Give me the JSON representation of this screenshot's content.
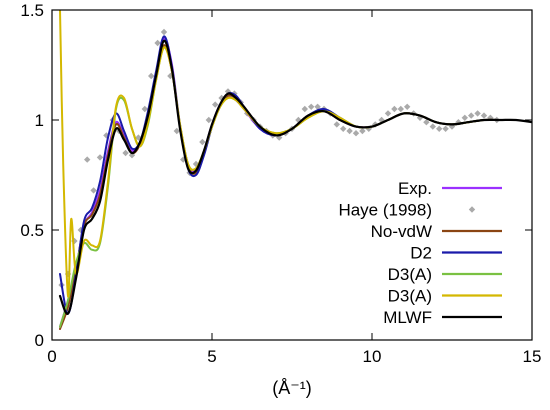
{
  "chart_data": {
    "type": "line",
    "title": "",
    "xlabel": "(Å⁻¹)",
    "ylabel": "",
    "xlim": [
      0,
      15
    ],
    "ylim": [
      0,
      1.5
    ],
    "grid": false,
    "legend_position": "bottom-right",
    "x_ticks": [
      "0",
      "5",
      "10",
      "15"
    ],
    "y_ticks": [
      "0",
      "0.5",
      "1",
      "1.5"
    ],
    "series": [
      {
        "name": "Exp.",
        "style": "line",
        "color": "#9b30ff",
        "x": [
          0.25,
          0.5,
          0.75,
          1.0,
          1.25,
          1.5,
          1.75,
          2.0,
          2.25,
          2.5,
          2.75,
          3.0,
          3.25,
          3.5,
          3.75,
          4.0,
          4.25,
          4.5,
          4.75,
          5.0,
          5.25,
          5.5,
          5.75,
          6.0,
          6.5,
          7.0,
          7.5,
          8.0,
          8.5,
          9.0,
          9.5,
          10.0,
          10.5,
          11.0,
          11.5,
          12.0,
          12.5,
          13.0,
          13.5,
          14.0
        ],
        "y": [
          0.06,
          0.18,
          0.32,
          0.52,
          0.58,
          0.68,
          0.86,
          0.99,
          0.93,
          0.86,
          0.9,
          1.02,
          1.2,
          1.37,
          1.25,
          0.98,
          0.8,
          0.77,
          0.86,
          0.98,
          1.07,
          1.11,
          1.09,
          1.05,
          0.96,
          0.93,
          0.96,
          1.02,
          1.04,
          1.0,
          0.97,
          0.97,
          1.0,
          1.03,
          1.02,
          0.99,
          0.98,
          0.99,
          1.0,
          1.0
        ]
      },
      {
        "name": "Haye (1998)",
        "style": "markers",
        "color": "#aaaaaa",
        "x": [
          0.3,
          0.5,
          0.7,
          0.9,
          1.1,
          1.3,
          1.5,
          1.7,
          1.9,
          2.1,
          2.3,
          2.5,
          2.7,
          2.9,
          3.1,
          3.3,
          3.5,
          3.7,
          3.9,
          4.1,
          4.3,
          4.5,
          4.7,
          4.9,
          5.1,
          5.3,
          5.5,
          5.7,
          5.9,
          6.1,
          6.3,
          6.5,
          6.7,
          6.9,
          7.1,
          7.3,
          7.5,
          7.7,
          7.9,
          8.1,
          8.3,
          8.5,
          8.7,
          8.9,
          9.1,
          9.3,
          9.5,
          9.7,
          9.9,
          10.1,
          10.3,
          10.5,
          10.7,
          10.9,
          11.1,
          11.3,
          11.5,
          11.7,
          11.9,
          12.1,
          12.3,
          12.5,
          12.7,
          12.9,
          13.1,
          13.3,
          13.5,
          13.7,
          13.9
        ],
        "y": [
          0.25,
          0.3,
          0.45,
          0.5,
          0.82,
          0.68,
          0.83,
          0.93,
          1.0,
          0.95,
          0.85,
          0.84,
          0.92,
          1.05,
          1.2,
          1.35,
          1.4,
          1.2,
          0.95,
          0.82,
          0.76,
          0.8,
          0.9,
          1.0,
          1.07,
          1.1,
          1.13,
          1.12,
          1.08,
          1.03,
          1.0,
          0.97,
          0.95,
          0.93,
          0.92,
          0.94,
          0.96,
          1.0,
          1.05,
          1.06,
          1.06,
          1.05,
          1.03,
          0.98,
          0.96,
          0.95,
          0.94,
          0.95,
          0.96,
          0.98,
          1.0,
          1.03,
          1.05,
          1.05,
          1.06,
          1.03,
          1.01,
          0.99,
          0.97,
          0.96,
          0.96,
          0.97,
          0.99,
          1.01,
          1.02,
          1.03,
          1.02,
          1.01,
          1.0
        ]
      },
      {
        "name": "No-vdW",
        "style": "line",
        "color": "#8b4513",
        "x": [
          0.25,
          0.5,
          0.75,
          1.0,
          1.25,
          1.5,
          1.75,
          2.0,
          2.25,
          2.5,
          2.75,
          3.0,
          3.25,
          3.5,
          3.75,
          4.0,
          4.25,
          4.5,
          4.75,
          5.0,
          5.25,
          5.5,
          5.75,
          6.0,
          6.5,
          7.0,
          7.5,
          8.0,
          8.5,
          9.0,
          9.5,
          10.0,
          10.5,
          11.0,
          11.5,
          12.0,
          12.5,
          13.0,
          13.5,
          14.0
        ],
        "y": [
          0.05,
          0.15,
          0.32,
          0.52,
          0.57,
          0.66,
          0.84,
          0.98,
          0.92,
          0.85,
          0.89,
          1.02,
          1.2,
          1.34,
          1.22,
          0.97,
          0.79,
          0.76,
          0.85,
          0.97,
          1.06,
          1.11,
          1.1,
          1.06,
          0.97,
          0.93,
          0.96,
          1.02,
          1.04,
          1.0,
          0.97,
          0.97,
          1.0,
          1.03,
          1.02,
          0.99,
          0.98,
          0.99,
          1.0,
          1.0
        ]
      },
      {
        "name": "D2",
        "style": "line",
        "color": "#1a1aaa",
        "x": [
          0.25,
          0.5,
          0.75,
          1.0,
          1.25,
          1.5,
          1.75,
          2.0,
          2.25,
          2.5,
          2.75,
          3.0,
          3.25,
          3.5,
          3.75,
          4.0,
          4.25,
          4.5,
          4.75,
          5.0,
          5.25,
          5.5,
          5.75,
          6.0,
          6.5,
          7.0,
          7.5,
          8.0,
          8.5,
          9.0,
          9.5,
          10.0,
          10.5,
          11.0,
          11.5,
          12.0,
          12.5,
          13.0,
          13.5,
          14.0
        ],
        "y": [
          0.3,
          0.12,
          0.3,
          0.54,
          0.6,
          0.72,
          0.92,
          1.03,
          0.95,
          0.87,
          0.9,
          1.04,
          1.22,
          1.38,
          1.24,
          0.97,
          0.78,
          0.75,
          0.84,
          0.97,
          1.07,
          1.12,
          1.11,
          1.06,
          0.96,
          0.93,
          0.96,
          1.02,
          1.05,
          1.01,
          0.97,
          0.97,
          1.0,
          1.03,
          1.02,
          0.99,
          0.98,
          0.99,
          1.0,
          1.0
        ]
      },
      {
        "name": "D3(A)",
        "style": "line",
        "color": "#7ac142",
        "x": [
          0.25,
          0.5,
          0.75,
          1.0,
          1.25,
          1.5,
          1.75,
          2.0,
          2.25,
          2.5,
          2.75,
          3.0,
          3.25,
          3.5,
          3.75,
          4.0,
          4.25,
          4.5,
          4.75,
          5.0,
          5.25,
          5.5,
          5.75,
          6.0,
          6.5,
          7.0,
          7.5,
          8.0,
          8.5,
          9.0,
          9.5,
          10.0,
          10.5,
          11.0,
          11.5,
          12.0,
          12.5,
          13.0,
          13.5,
          14.0
        ],
        "y": [
          0.06,
          0.18,
          0.35,
          0.44,
          0.41,
          0.44,
          0.7,
          1.05,
          1.09,
          0.96,
          0.88,
          0.98,
          1.18,
          1.33,
          1.23,
          0.98,
          0.8,
          0.78,
          0.86,
          0.97,
          1.06,
          1.1,
          1.09,
          1.05,
          0.97,
          0.94,
          0.96,
          1.01,
          1.04,
          1.01,
          0.97,
          0.97,
          1.0,
          1.03,
          1.02,
          0.99,
          0.98,
          0.99,
          1.0,
          1.0
        ]
      },
      {
        "name": "D3(A)",
        "style": "line",
        "color": "#d4b800",
        "x": [
          0.25,
          0.35,
          0.5,
          0.6,
          0.75,
          1.0,
          1.25,
          1.5,
          1.75,
          2.0,
          2.25,
          2.5,
          2.75,
          3.0,
          3.25,
          3.5,
          3.75,
          4.0,
          4.25,
          4.5,
          4.75,
          5.0,
          5.25,
          5.5,
          5.75,
          6.0,
          6.5,
          7.0,
          7.5,
          8.0,
          8.5,
          9.0,
          9.5,
          10.0,
          10.5,
          11.0,
          11.5,
          12.0,
          12.5,
          13.0,
          13.5,
          14.0
        ],
        "y": [
          1.5,
          0.8,
          0.2,
          0.55,
          0.3,
          0.45,
          0.43,
          0.45,
          0.72,
          1.06,
          1.1,
          0.96,
          0.88,
          0.99,
          1.18,
          1.33,
          1.22,
          0.98,
          0.8,
          0.78,
          0.86,
          0.97,
          1.06,
          1.1,
          1.09,
          1.05,
          0.97,
          0.94,
          0.96,
          1.01,
          1.04,
          1.01,
          0.97,
          0.97,
          1.0,
          1.03,
          1.02,
          0.99,
          0.98,
          0.99,
          1.0,
          1.0
        ]
      },
      {
        "name": "MLWF",
        "style": "line",
        "color": "#000000",
        "x": [
          0.25,
          0.5,
          0.75,
          1.0,
          1.25,
          1.5,
          1.75,
          2.0,
          2.25,
          2.5,
          2.75,
          3.0,
          3.25,
          3.5,
          3.75,
          4.0,
          4.25,
          4.5,
          4.75,
          5.0,
          5.25,
          5.5,
          5.75,
          6.0,
          6.5,
          7.0,
          7.5,
          8.0,
          8.5,
          9.0,
          9.5,
          10.0,
          10.5,
          11.0,
          11.5,
          12.0,
          12.5,
          13.0,
          13.5,
          14.0,
          14.5,
          15.0
        ],
        "y": [
          0.2,
          0.12,
          0.28,
          0.5,
          0.55,
          0.63,
          0.82,
          0.96,
          0.91,
          0.85,
          0.9,
          1.02,
          1.2,
          1.36,
          1.23,
          0.96,
          0.78,
          0.77,
          0.86,
          0.98,
          1.07,
          1.12,
          1.1,
          1.06,
          0.97,
          0.93,
          0.96,
          1.02,
          1.04,
          1.0,
          0.97,
          0.97,
          1.0,
          1.03,
          1.02,
          0.99,
          0.98,
          0.99,
          1.0,
          1.0,
          1.0,
          0.99
        ]
      }
    ]
  }
}
